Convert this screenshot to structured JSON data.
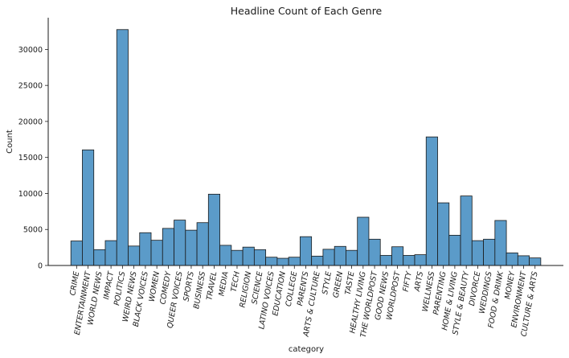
{
  "chart_data": {
    "type": "bar",
    "title": "Headline Count of Each Genre",
    "xlabel": "category",
    "ylabel": "Count",
    "ylim": [
      0,
      34400
    ],
    "yticks": [
      0,
      5000,
      10000,
      15000,
      20000,
      25000,
      30000
    ],
    "bar_color": "#5b9bc9",
    "edge_color": "#1a1a1a",
    "grid": false,
    "categories": [
      "CRIME",
      "ENTERTAINMENT",
      "WORLD NEWS",
      "IMPACT",
      "POLITICS",
      "WEIRD NEWS",
      "BLACK VOICES",
      "WOMEN",
      "COMEDY",
      "QUEER VOICES",
      "SPORTS",
      "BUSINESS",
      "TRAVEL",
      "MEDIA",
      "TECH",
      "RELIGION",
      "SCIENCE",
      "LATINO VOICES",
      "EDUCATION",
      "COLLEGE",
      "PARENTS",
      "ARTS & CULTURE",
      "STYLE",
      "GREEN",
      "TASTE",
      "HEALTHY LIVING",
      "THE WORLDPOST",
      "GOOD NEWS",
      "WORLDPOST",
      "FIFTY",
      "ARTS",
      "WELLNESS",
      "PARENTING",
      "HOME & LIVING",
      "STYLE & BEAUTY",
      "DIVORCE",
      "WEDDINGS",
      "FOOD & DRINK",
      "MONEY",
      "ENVIRONMENT",
      "CULTURE & ARTS"
    ],
    "values": [
      3400,
      16050,
      2200,
      3450,
      32750,
      2700,
      4550,
      3500,
      5150,
      6300,
      4900,
      5950,
      9900,
      2800,
      2100,
      2550,
      2200,
      1150,
      1000,
      1150,
      4000,
      1300,
      2250,
      2650,
      2100,
      6700,
      3650,
      1400,
      2600,
      1400,
      1500,
      17850,
      8700,
      4200,
      9650,
      3450,
      3650,
      6250,
      1750,
      1350,
      1050
    ]
  }
}
